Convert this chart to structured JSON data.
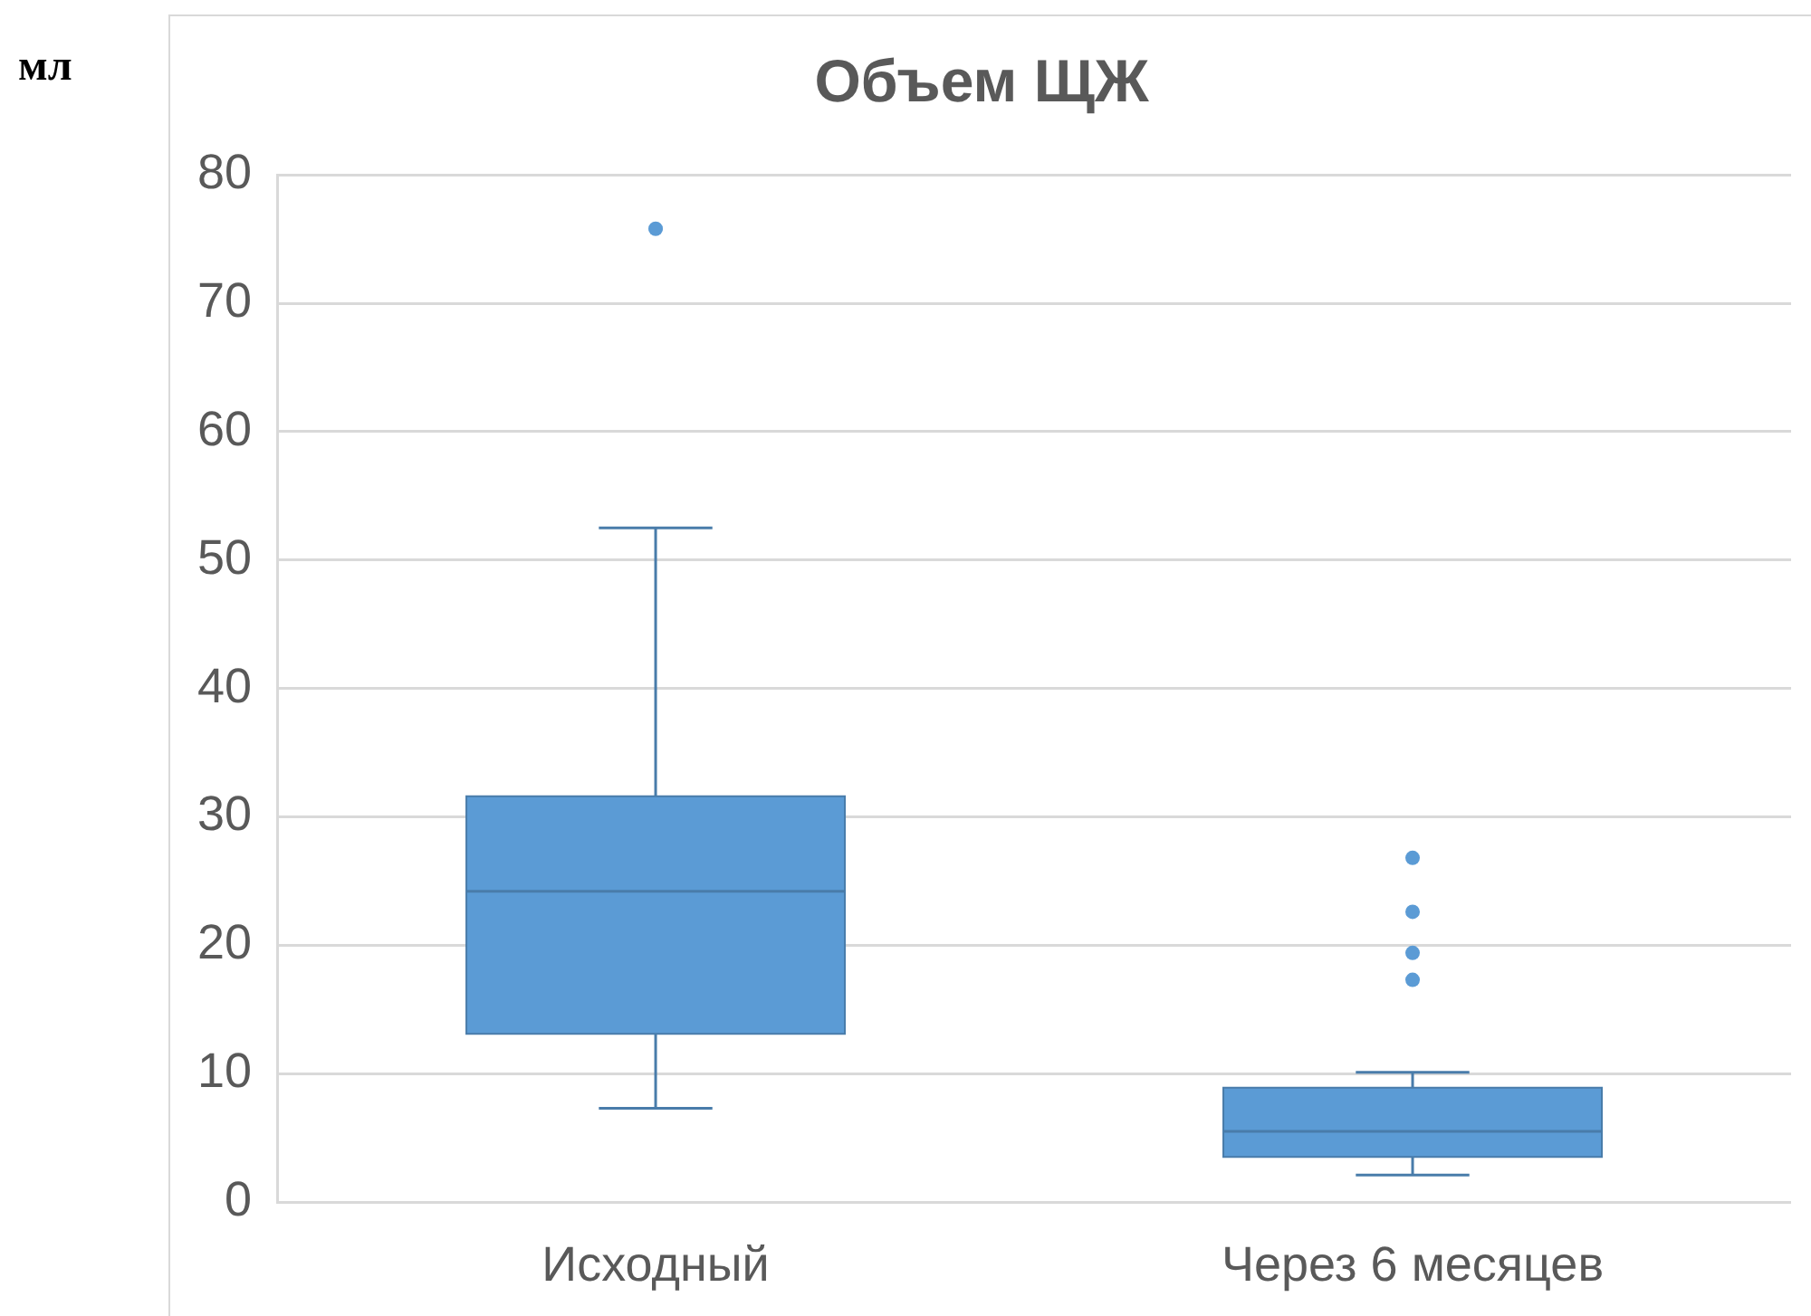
{
  "chart_data": {
    "type": "box",
    "title": "Объем ЩЖ",
    "ylabel": "мл",
    "categories": [
      "Исходный",
      "Через 6 месяцев"
    ],
    "boxes": [
      {
        "low": 7.3,
        "q1": 13.1,
        "median": 24.2,
        "q3": 31.6,
        "high": 52.5,
        "outliers": [
          75.8
        ]
      },
      {
        "low": 2.1,
        "q1": 3.5,
        "median": 5.5,
        "q3": 8.9,
        "high": 10.1,
        "outliers": [
          26.8,
          22.6,
          19.4,
          17.3
        ]
      }
    ],
    "color": "#5b9bd5",
    "ylim": [
      0,
      80
    ],
    "yticks": [
      0,
      10,
      20,
      30,
      40,
      50,
      60,
      70,
      80
    ],
    "grid": "y"
  }
}
